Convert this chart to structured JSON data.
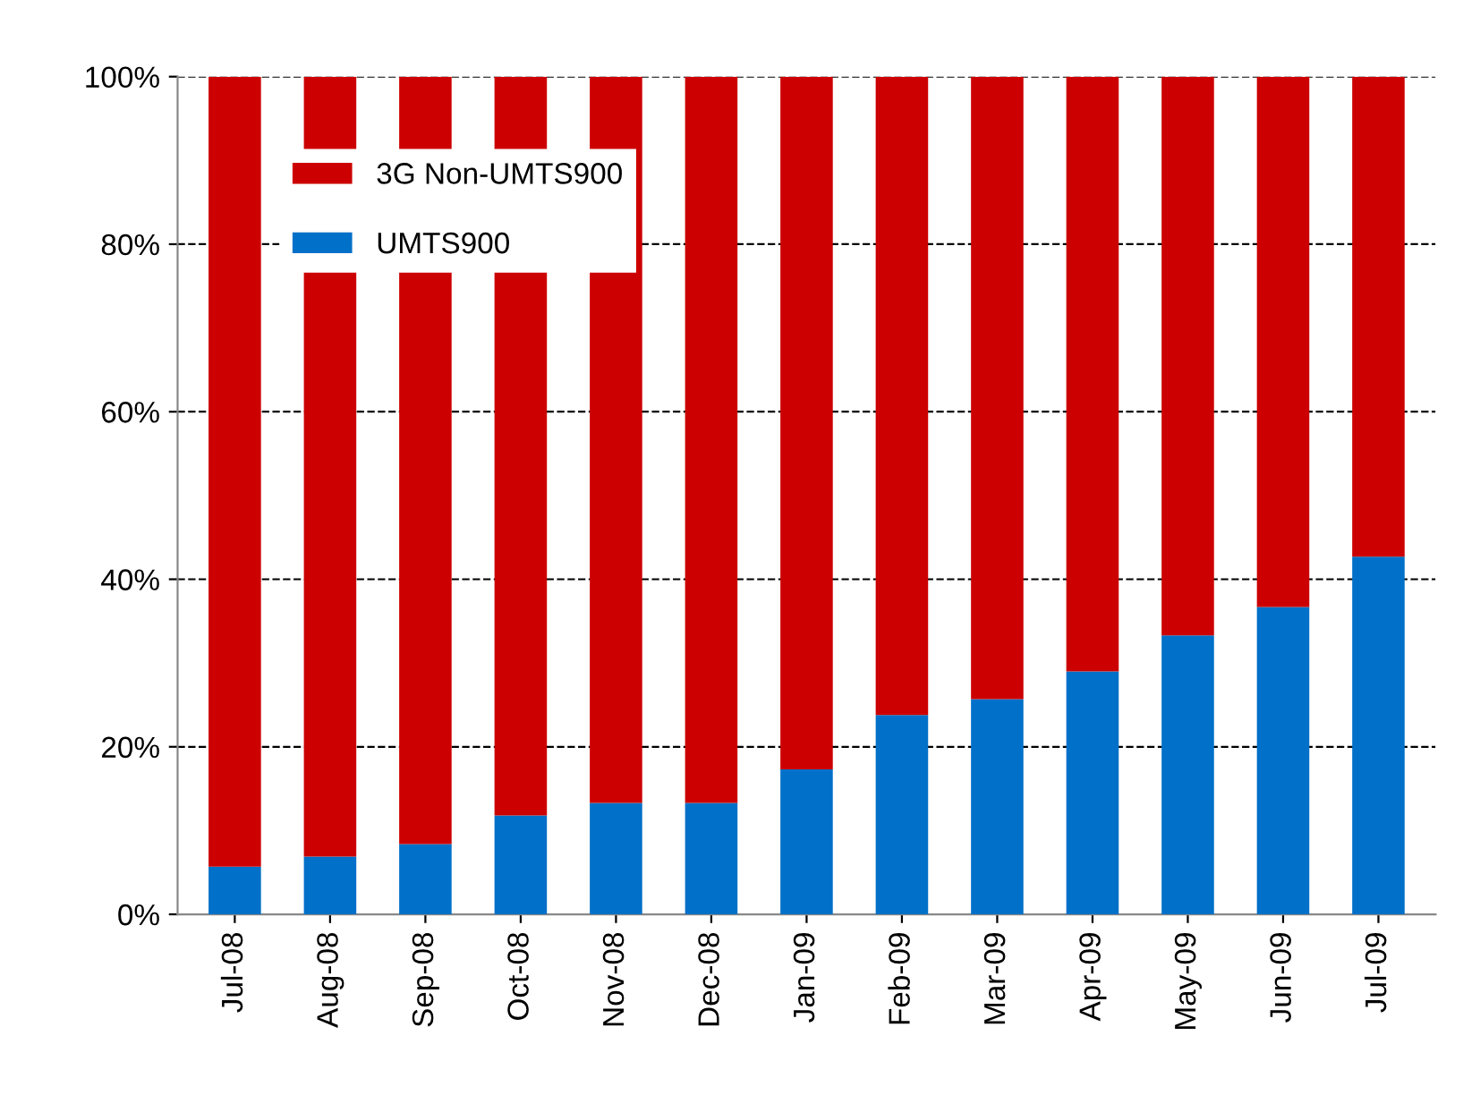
{
  "chart_data": {
    "type": "bar",
    "stacked": true,
    "categories": [
      "Jul-08",
      "Aug-08",
      "Sep-08",
      "Oct-08",
      "Nov-08",
      "Dec-08",
      "Jan-09",
      "Feb-09",
      "Mar-09",
      "Apr-09",
      "May-09",
      "Jun-09",
      "Jul-09"
    ],
    "series": [
      {
        "name": "UMTS900",
        "color": "#0070c8",
        "values": [
          5.7,
          6.9,
          8.4,
          11.8,
          13.3,
          13.3,
          17.3,
          23.8,
          25.7,
          29.0,
          33.3,
          36.7,
          42.7
        ]
      },
      {
        "name": "3G Non-UMTS900",
        "color": "#cc0000",
        "values": [
          94.3,
          93.1,
          91.6,
          88.2,
          86.7,
          86.7,
          82.7,
          76.2,
          74.3,
          71.0,
          66.7,
          63.3,
          57.3
        ]
      }
    ],
    "ylim": [
      0,
      100
    ],
    "yticks": [
      {
        "value": 0,
        "label": "0%"
      },
      {
        "value": 20,
        "label": "20%"
      },
      {
        "value": 40,
        "label": "40%"
      },
      {
        "value": 60,
        "label": "60%"
      },
      {
        "value": 80,
        "label": "80%"
      },
      {
        "value": 100,
        "label": "100%"
      }
    ],
    "grid": "y",
    "legend": "top left"
  }
}
